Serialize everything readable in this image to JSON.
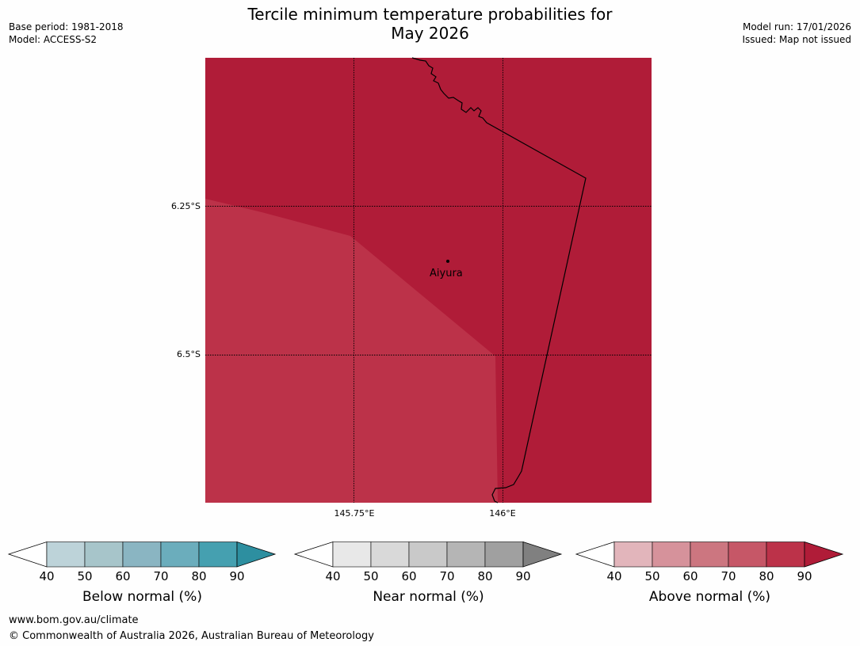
{
  "header": {
    "title_line1": "Tercile minimum temperature probabilities for",
    "title_line2": "May 2026",
    "base_period": "Base period: 1981-2018",
    "model": "Model: ACCESS-S2",
    "model_run": "Model run: 17/01/2026",
    "issued": "Issued: Map not issued"
  },
  "map": {
    "region_colors": {
      "darker": "#b01c38",
      "lighter": "#bc3249"
    },
    "latitude_ticks": [
      "6.25°S",
      "6.5°S"
    ],
    "longitude_ticks": [
      "145.75°E",
      "146°E"
    ],
    "location": {
      "name": "Aiyura"
    }
  },
  "legends": [
    {
      "label": "Below normal (%)",
      "ticks": [
        "40",
        "50",
        "60",
        "70",
        "80",
        "90"
      ],
      "colors": [
        "#ffffff",
        "#bdd3d9",
        "#a7c5ca",
        "#8ab5c2",
        "#6badbc",
        "#45a0b0",
        "#2d8fa0"
      ]
    },
    {
      "label": "Near normal (%)",
      "ticks": [
        "40",
        "50",
        "60",
        "70",
        "80",
        "90"
      ],
      "colors": [
        "#ffffff",
        "#e8e8e8",
        "#d9d9d9",
        "#c9c9c9",
        "#b5b5b5",
        "#a0a0a0",
        "#808080"
      ]
    },
    {
      "label": "Above normal (%)",
      "ticks": [
        "40",
        "50",
        "60",
        "70",
        "80",
        "90"
      ],
      "colors": [
        "#ffffff",
        "#e2b5bb",
        "#d6929b",
        "#cc7680",
        "#c65767",
        "#bc3249",
        "#b01c38"
      ]
    }
  ],
  "footer": {
    "url": "www.bom.gov.au/climate",
    "copyright": "© Commonwealth of Australia 2026, Australian Bureau of Meteorology"
  }
}
